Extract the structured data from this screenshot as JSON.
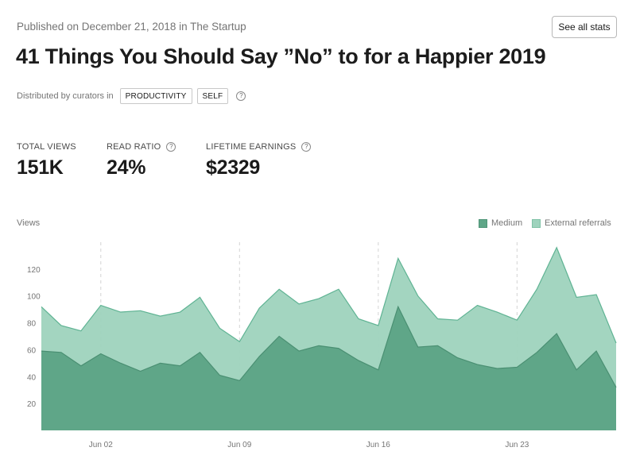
{
  "header": {
    "published": "Published on December 21, 2018 in The Startup",
    "see_all_label": "See all stats",
    "title": "41 Things You Should Say ”No” to for a Happier 2019"
  },
  "curators": {
    "label": "Distributed by curators in",
    "tags": [
      "PRODUCTIVITY",
      "SELF"
    ]
  },
  "stats": [
    {
      "label": "TOTAL VIEWS",
      "value": "151K",
      "has_help": false
    },
    {
      "label": "READ RATIO",
      "value": "24%",
      "has_help": true
    },
    {
      "label": "LIFETIME EARNINGS",
      "value": "$2329",
      "has_help": true
    }
  ],
  "chart": {
    "ylabel": "Views",
    "legend": [
      {
        "name": "Medium",
        "color": "#5fa688"
      },
      {
        "name": "External referrals",
        "color": "#9ed3bd"
      }
    ]
  },
  "chart_data": {
    "type": "area",
    "stacked": true,
    "y_ticks": [
      20,
      40,
      60,
      80,
      100,
      120
    ],
    "ylim": [
      0,
      140
    ],
    "x_tick_labels": [
      "Jun 02",
      "Jun 09",
      "Jun 16",
      "Jun 23"
    ],
    "x_tick_index": [
      3,
      10,
      17,
      24
    ],
    "grid": "dashed vertical at x ticks",
    "legend_position": "top-right",
    "series": [
      {
        "name": "Medium",
        "color": "#5fa688",
        "values": [
          59,
          58,
          48,
          57,
          50,
          44,
          50,
          48,
          58,
          41,
          37,
          55,
          70,
          59,
          63,
          61,
          52,
          45,
          92,
          62,
          63,
          54,
          49,
          46,
          47,
          58,
          72,
          45,
          59,
          32
        ]
      },
      {
        "name": "External referrals",
        "color": "#9ed3bd",
        "values": [
          33,
          20,
          26,
          36,
          38,
          45,
          35,
          40,
          41,
          35,
          29,
          36,
          35,
          35,
          35,
          44,
          31,
          33,
          36,
          38,
          20,
          28,
          44,
          42,
          35,
          47,
          64,
          54,
          42,
          33
        ]
      }
    ]
  }
}
